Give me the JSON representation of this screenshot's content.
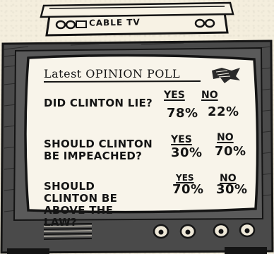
{
  "tv": {
    "cable_box_label": "CABLE TV"
  },
  "screen": {
    "title": "Latest OPINION POLL",
    "logo_icon": "eagle-emblem-icon",
    "questions": [
      {
        "text": "DID CLINTON LIE?",
        "yes_label": "YES",
        "no_label": "NO",
        "yes_value": "78%",
        "no_value": "22%"
      },
      {
        "text": "SHOULD CLINTON BE IMPEACHED?",
        "yes_label": "YES",
        "no_label": "NO",
        "yes_value": "30%",
        "no_value": "70%"
      },
      {
        "text": "SHOULD CLINTON BE ABOVE THE LAW?",
        "yes_label": "YES",
        "no_label": "NO",
        "yes_value": "70%",
        "no_value": "30%"
      }
    ]
  },
  "colors": {
    "ink": "#141414",
    "paper": "#f4eedd",
    "tv_body": "#3a3a3a"
  }
}
